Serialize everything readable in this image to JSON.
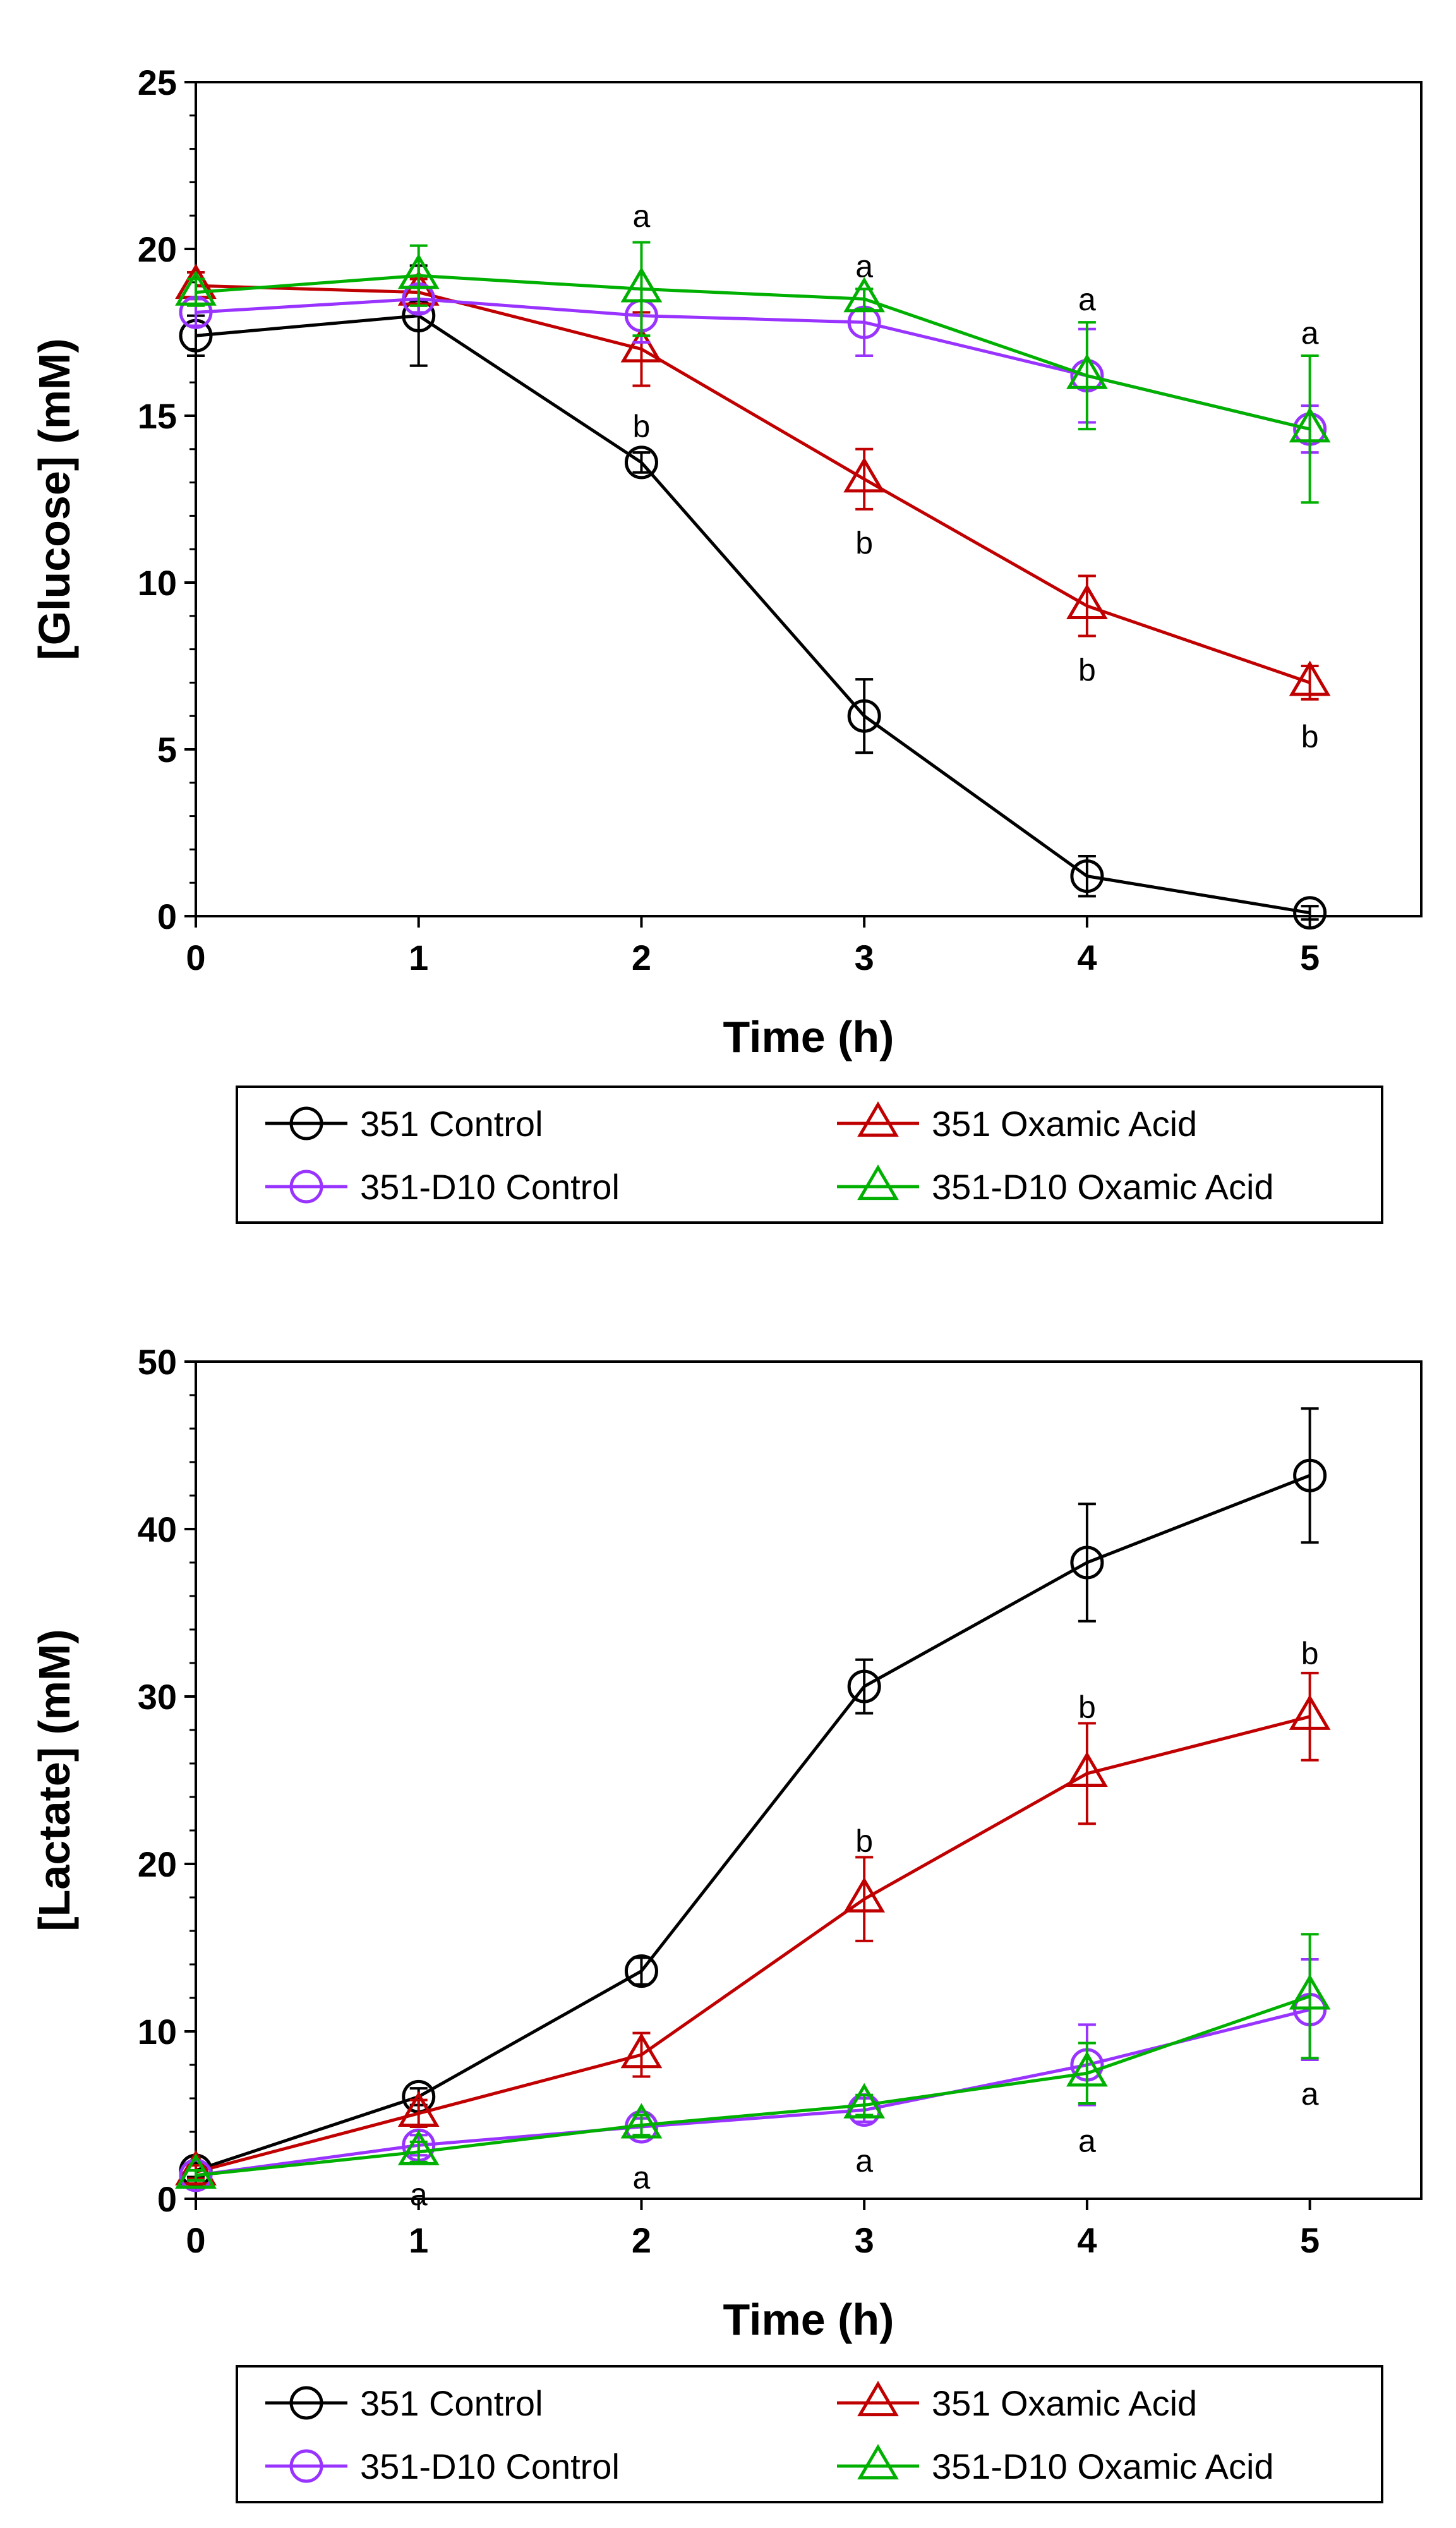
{
  "chart_data": [
    {
      "type": "line",
      "title": "",
      "xlabel": "Time (h)",
      "ylabel": "[Glucose] (mM)",
      "x": [
        0,
        1,
        2,
        3,
        4,
        5
      ],
      "xlim": [
        0,
        5.5
      ],
      "ylim": [
        0,
        25
      ],
      "xticks": [
        0,
        1,
        2,
        3,
        4,
        5
      ],
      "yticks": [
        0,
        5,
        10,
        15,
        20,
        25
      ],
      "grid": false,
      "legend_position": "bottom",
      "series": [
        {
          "name": "351 Control",
          "color": "#000000",
          "marker": "circle",
          "values": [
            17.4,
            18.0,
            13.6,
            6.0,
            1.2,
            0.1
          ],
          "errors": [
            0.6,
            1.5,
            0.3,
            1.1,
            0.6,
            0.2
          ]
        },
        {
          "name": "351 Oxamic Acid",
          "color": "#c00000",
          "marker": "triangle",
          "values": [
            18.9,
            18.7,
            17.0,
            13.1,
            9.3,
            7.0
          ],
          "errors": [
            0.4,
            0.4,
            1.1,
            0.9,
            0.9,
            0.5
          ]
        },
        {
          "name": "351-D10 Control",
          "color": "#9933ff",
          "marker": "circle",
          "values": [
            18.1,
            18.5,
            18.0,
            17.8,
            16.2,
            14.6
          ],
          "errors": [
            0.4,
            0.4,
            0.8,
            1.0,
            1.4,
            0.7
          ]
        },
        {
          "name": "351-D10 Oxamic Acid",
          "color": "#00b000",
          "marker": "triangle",
          "values": [
            18.7,
            19.2,
            18.8,
            18.5,
            16.2,
            14.6
          ],
          "errors": [
            0.4,
            0.9,
            1.4,
            0.3,
            1.6,
            2.2
          ]
        }
      ],
      "annotations": [
        {
          "text": "a",
          "x": 2,
          "y": 21.0
        },
        {
          "text": "b",
          "x": 2,
          "y": 14.7
        },
        {
          "text": "a",
          "x": 3,
          "y": 19.5
        },
        {
          "text": "b",
          "x": 3,
          "y": 11.2
        },
        {
          "text": "a",
          "x": 4,
          "y": 18.5
        },
        {
          "text": "b",
          "x": 4,
          "y": 7.4
        },
        {
          "text": "a",
          "x": 5,
          "y": 17.5
        },
        {
          "text": "b",
          "x": 5,
          "y": 5.4
        }
      ]
    },
    {
      "type": "line",
      "title": "",
      "xlabel": "Time (h)",
      "ylabel": "[Lactate] (mM)",
      "x": [
        0,
        1,
        2,
        3,
        4,
        5
      ],
      "xlim": [
        0,
        5.5
      ],
      "ylim": [
        0,
        50
      ],
      "xticks": [
        0,
        1,
        2,
        3,
        4,
        5
      ],
      "yticks": [
        0,
        10,
        20,
        30,
        40,
        50
      ],
      "grid": false,
      "legend_position": "bottom",
      "series": [
        {
          "name": "351 Control",
          "color": "#000000",
          "marker": "circle",
          "values": [
            1.7,
            6.1,
            13.6,
            30.6,
            38.0,
            43.2
          ],
          "errors": [
            0.4,
            0.5,
            0.8,
            1.6,
            3.5,
            4.0
          ]
        },
        {
          "name": "351 Oxamic Acid",
          "color": "#c00000",
          "marker": "triangle",
          "values": [
            1.6,
            5.1,
            8.6,
            17.9,
            25.4,
            28.8
          ],
          "errors": [
            0.4,
            0.8,
            1.3,
            2.5,
            3.0,
            2.6
          ]
        },
        {
          "name": "351-D10 Control",
          "color": "#9933ff",
          "marker": "circle",
          "values": [
            1.4,
            3.2,
            4.3,
            5.3,
            8.0,
            11.3
          ],
          "errors": [
            0.3,
            0.6,
            0.5,
            0.7,
            2.4,
            3.0
          ]
        },
        {
          "name": "351-D10 Oxamic Acid",
          "color": "#00b000",
          "marker": "triangle",
          "values": [
            1.4,
            2.8,
            4.4,
            5.6,
            7.5,
            12.1
          ],
          "errors": [
            0.3,
            0.6,
            0.6,
            0.6,
            1.8,
            3.7
          ]
        }
      ],
      "annotations": [
        {
          "text": "a",
          "x": 1,
          "y": 0.3
        },
        {
          "text": "a",
          "x": 2,
          "y": 1.3
        },
        {
          "text": "b",
          "x": 3,
          "y": 21.4
        },
        {
          "text": "a",
          "x": 3,
          "y": 2.3
        },
        {
          "text": "b",
          "x": 4,
          "y": 29.4
        },
        {
          "text": "a",
          "x": 4,
          "y": 3.5
        },
        {
          "text": "b",
          "x": 5,
          "y": 32.6
        },
        {
          "text": "a",
          "x": 5,
          "y": 6.3
        }
      ]
    }
  ]
}
